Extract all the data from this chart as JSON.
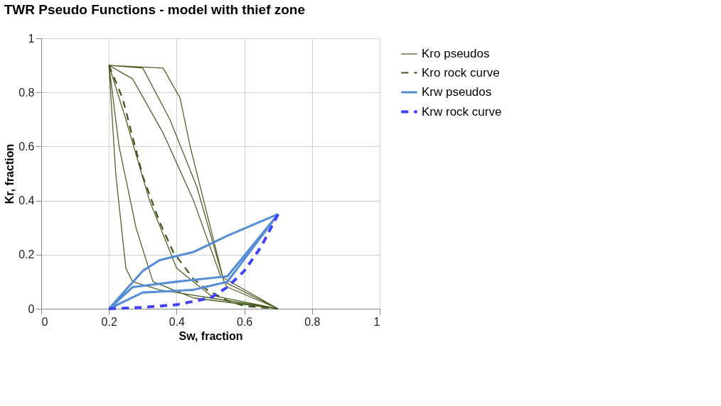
{
  "chart_data": {
    "type": "line",
    "title": "TWR Pseudo Functions - model with thief zone",
    "xlabel": "Sw, fraction",
    "ylabel": "Kr, fraction",
    "xlim": [
      0,
      1
    ],
    "xticks": [
      0,
      0.2,
      0.4,
      0.6,
      0.8,
      1
    ],
    "ylim": [
      0,
      1
    ],
    "yticks": [
      0,
      0.2,
      0.4,
      0.6,
      0.8,
      1
    ],
    "grid": true,
    "legend": "right",
    "series": [
      {
        "name": "Kro pseudos",
        "color": "#4f6228",
        "line_style": "solid",
        "x": [
          0.2,
          0.22,
          0.25,
          0.27,
          0.35,
          0.5,
          0.7,
          null,
          0.2,
          0.36,
          0.41,
          0.44,
          0.49,
          0.54,
          0.55,
          0.7,
          null,
          0.2,
          0.27,
          0.36,
          0.45,
          0.53,
          0.7,
          null,
          0.2,
          0.25,
          0.32,
          0.4,
          0.5,
          0.7,
          null,
          0.2,
          0.23,
          0.28,
          0.33,
          0.45,
          0.7,
          null,
          0.2,
          0.3,
          0.38,
          0.46,
          0.54,
          0.7
        ],
        "values": [
          0.9,
          0.5,
          0.15,
          0.1,
          0.07,
          0.04,
          0,
          null,
          0.9,
          0.89,
          0.78,
          0.6,
          0.35,
          0.1,
          0.08,
          0,
          null,
          0.9,
          0.85,
          0.65,
          0.4,
          0.12,
          0,
          null,
          0.9,
          0.7,
          0.4,
          0.15,
          0.05,
          0,
          null,
          0.9,
          0.6,
          0.3,
          0.1,
          0.04,
          0,
          null,
          0.9,
          0.89,
          0.7,
          0.45,
          0.1,
          0
        ]
      },
      {
        "name": "Kro rock curve",
        "color": "#3a5418",
        "line_style": "dashed",
        "x": [
          0.2,
          0.24,
          0.3,
          0.35,
          0.39,
          0.45,
          0.49,
          0.55,
          0.6,
          0.7
        ],
        "values": [
          0.9,
          0.78,
          0.49,
          0.32,
          0.21,
          0.11,
          0.07,
          0.03,
          0.01,
          0
        ]
      },
      {
        "name": "Krw pseudos",
        "color": "#558ed5",
        "line_style": "solid",
        "x": [
          0.2,
          0.3,
          0.35,
          0.45,
          0.55,
          0.7,
          null,
          0.2,
          0.27,
          0.4,
          0.55,
          0.7,
          null,
          0.2,
          0.3,
          0.45,
          0.55,
          0.7
        ],
        "values": [
          0,
          0.14,
          0.18,
          0.21,
          0.27,
          0.35,
          null,
          0,
          0.08,
          0.1,
          0.12,
          0.35,
          null,
          0,
          0.06,
          0.07,
          0.1,
          0.35
        ]
      },
      {
        "name": "Krw rock curve",
        "color": "#4040ff",
        "line_style": "dashed",
        "x": [
          0.2,
          0.3,
          0.4,
          0.5,
          0.55,
          0.6,
          0.65,
          0.7
        ],
        "values": [
          0,
          0.005,
          0.015,
          0.04,
          0.08,
          0.14,
          0.23,
          0.35
        ]
      }
    ]
  }
}
